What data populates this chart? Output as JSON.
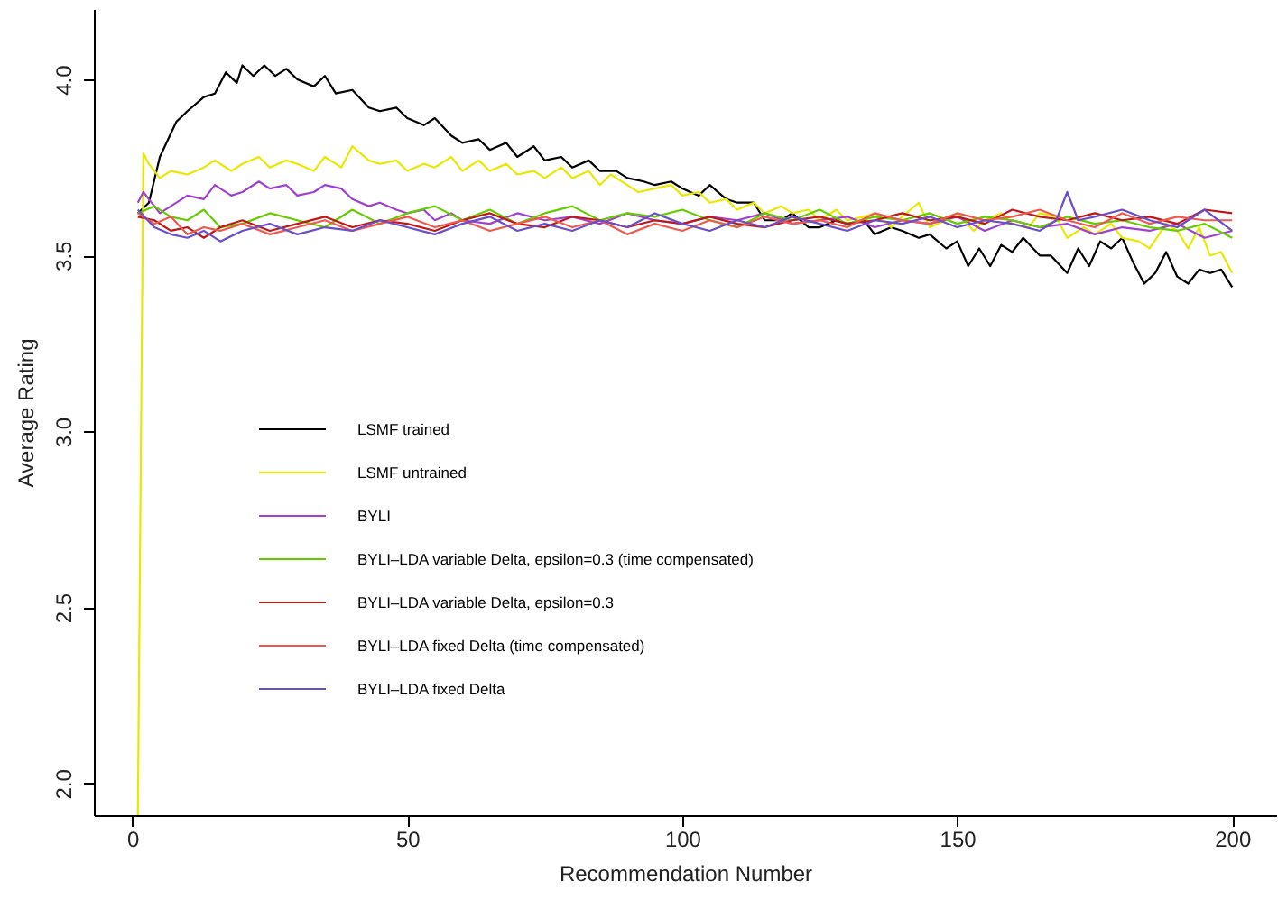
{
  "chart_data": {
    "type": "line",
    "xlabel": "Recommendation Number",
    "ylabel": "Average Rating",
    "xlim": [
      -7,
      208
    ],
    "ylim": [
      1.91,
      4.2
    ],
    "xticks": [
      0,
      50,
      100,
      150,
      200
    ],
    "yticks": [
      {
        "value": 2,
        "label": "2.0"
      },
      {
        "value": 2.5,
        "label": "2.5"
      },
      {
        "value": 3,
        "label": "3.0"
      },
      {
        "value": 3.5,
        "label": "3.5"
      },
      {
        "value": 4,
        "label": "4.0"
      }
    ],
    "grid": false,
    "legend": "left",
    "line_style": "solid",
    "series": [
      {
        "name": "LSMF trained",
        "color": "#000000",
        "x": [
          1,
          3,
          5,
          8,
          10,
          13,
          15,
          17,
          19,
          20,
          22,
          24,
          26,
          28,
          30,
          33,
          35,
          37,
          40,
          43,
          45,
          48,
          50,
          53,
          55,
          58,
          60,
          63,
          65,
          68,
          70,
          73,
          75,
          78,
          80,
          83,
          85,
          88,
          90,
          93,
          95,
          98,
          100,
          103,
          105,
          108,
          110,
          113,
          115,
          118,
          120,
          123,
          125,
          128,
          130,
          133,
          135,
          138,
          140,
          143,
          145,
          148,
          150,
          152,
          154,
          156,
          158,
          160,
          162,
          165,
          167,
          170,
          172,
          174,
          176,
          178,
          180,
          182,
          184,
          186,
          188,
          190,
          192,
          194,
          196,
          198,
          200
        ],
        "values": [
          3.62,
          3.65,
          3.78,
          3.88,
          3.91,
          3.95,
          3.96,
          4.02,
          3.99,
          4.04,
          4.01,
          4.04,
          4.01,
          4.03,
          4.0,
          3.98,
          4.01,
          3.96,
          3.97,
          3.92,
          3.91,
          3.92,
          3.89,
          3.87,
          3.89,
          3.84,
          3.82,
          3.83,
          3.8,
          3.82,
          3.78,
          3.81,
          3.77,
          3.78,
          3.75,
          3.77,
          3.74,
          3.74,
          3.72,
          3.71,
          3.7,
          3.71,
          3.69,
          3.67,
          3.7,
          3.66,
          3.65,
          3.65,
          3.6,
          3.6,
          3.62,
          3.58,
          3.58,
          3.6,
          3.59,
          3.6,
          3.56,
          3.58,
          3.57,
          3.55,
          3.56,
          3.52,
          3.54,
          3.47,
          3.52,
          3.47,
          3.53,
          3.51,
          3.55,
          3.5,
          3.5,
          3.45,
          3.52,
          3.47,
          3.54,
          3.52,
          3.55,
          3.48,
          3.42,
          3.45,
          3.51,
          3.44,
          3.42,
          3.46,
          3.45,
          3.46,
          3.41
        ]
      },
      {
        "name": "LSMF untrained",
        "color": "#e8e800",
        "x": [
          1,
          2,
          3,
          5,
          7,
          10,
          13,
          15,
          18,
          20,
          23,
          25,
          28,
          30,
          33,
          35,
          38,
          40,
          43,
          45,
          48,
          50,
          53,
          55,
          58,
          60,
          63,
          65,
          68,
          70,
          73,
          75,
          78,
          80,
          83,
          85,
          87,
          90,
          92,
          95,
          98,
          100,
          103,
          105,
          108,
          110,
          113,
          115,
          118,
          120,
          123,
          125,
          128,
          130,
          133,
          135,
          138,
          140,
          143,
          145,
          148,
          150,
          153,
          155,
          158,
          160,
          163,
          165,
          168,
          170,
          173,
          175,
          178,
          180,
          183,
          185,
          188,
          190,
          192,
          194,
          196,
          198,
          200
        ],
        "values": [
          1.91,
          3.79,
          3.76,
          3.72,
          3.74,
          3.73,
          3.75,
          3.77,
          3.74,
          3.76,
          3.78,
          3.75,
          3.77,
          3.76,
          3.74,
          3.78,
          3.75,
          3.81,
          3.77,
          3.76,
          3.77,
          3.74,
          3.76,
          3.75,
          3.78,
          3.74,
          3.77,
          3.74,
          3.76,
          3.73,
          3.74,
          3.72,
          3.75,
          3.72,
          3.74,
          3.7,
          3.73,
          3.7,
          3.68,
          3.69,
          3.7,
          3.67,
          3.68,
          3.65,
          3.66,
          3.63,
          3.65,
          3.62,
          3.64,
          3.62,
          3.63,
          3.6,
          3.63,
          3.6,
          3.61,
          3.62,
          3.58,
          3.61,
          3.65,
          3.58,
          3.6,
          3.62,
          3.57,
          3.6,
          3.62,
          3.59,
          3.58,
          3.62,
          3.61,
          3.55,
          3.58,
          3.56,
          3.59,
          3.55,
          3.54,
          3.52,
          3.59,
          3.57,
          3.52,
          3.58,
          3.5,
          3.51,
          3.45
        ]
      },
      {
        "name": "BYLI",
        "color": "#a040d0",
        "x": [
          1,
          2,
          3,
          5,
          7,
          10,
          13,
          15,
          18,
          20,
          23,
          25,
          28,
          30,
          33,
          35,
          38,
          40,
          43,
          45,
          48,
          50,
          53,
          55,
          58,
          60,
          65,
          70,
          75,
          80,
          85,
          90,
          95,
          100,
          105,
          110,
          115,
          120,
          125,
          130,
          135,
          140,
          145,
          150,
          155,
          160,
          165,
          170,
          175,
          180,
          185,
          190,
          195,
          200
        ],
        "values": [
          3.65,
          3.68,
          3.66,
          3.62,
          3.64,
          3.67,
          3.66,
          3.7,
          3.67,
          3.68,
          3.71,
          3.69,
          3.7,
          3.67,
          3.68,
          3.7,
          3.69,
          3.66,
          3.64,
          3.65,
          3.63,
          3.62,
          3.63,
          3.6,
          3.62,
          3.6,
          3.59,
          3.62,
          3.6,
          3.61,
          3.59,
          3.62,
          3.6,
          3.59,
          3.61,
          3.6,
          3.62,
          3.59,
          3.6,
          3.61,
          3.58,
          3.6,
          3.59,
          3.61,
          3.57,
          3.6,
          3.58,
          3.59,
          3.56,
          3.58,
          3.57,
          3.59,
          3.55,
          3.57
        ]
      },
      {
        "name": "BYLI–LDA variable Delta, epsilon=0.3 (time compensated)",
        "color": "#66cc00",
        "x": [
          1,
          4,
          7,
          10,
          13,
          16,
          20,
          25,
          30,
          35,
          40,
          45,
          50,
          55,
          60,
          65,
          70,
          75,
          80,
          85,
          90,
          95,
          100,
          105,
          110,
          115,
          120,
          125,
          130,
          135,
          140,
          145,
          150,
          155,
          160,
          165,
          170,
          175,
          180,
          185,
          190,
          195,
          200
        ],
        "values": [
          3.62,
          3.64,
          3.61,
          3.6,
          3.63,
          3.58,
          3.59,
          3.62,
          3.6,
          3.58,
          3.63,
          3.59,
          3.62,
          3.64,
          3.6,
          3.63,
          3.59,
          3.62,
          3.64,
          3.6,
          3.62,
          3.61,
          3.63,
          3.6,
          3.58,
          3.62,
          3.6,
          3.63,
          3.59,
          3.61,
          3.6,
          3.62,
          3.59,
          3.61,
          3.6,
          3.58,
          3.61,
          3.59,
          3.6,
          3.58,
          3.57,
          3.59,
          3.55
        ]
      },
      {
        "name": "BYLI–LDA variable Delta, epsilon=0.3",
        "color": "#c01818",
        "x": [
          1,
          4,
          7,
          10,
          13,
          16,
          20,
          25,
          30,
          35,
          40,
          45,
          50,
          55,
          60,
          65,
          70,
          75,
          80,
          85,
          90,
          95,
          100,
          105,
          110,
          115,
          120,
          125,
          130,
          135,
          140,
          145,
          150,
          155,
          160,
          165,
          170,
          175,
          180,
          185,
          190,
          195,
          200
        ],
        "values": [
          3.61,
          3.6,
          3.57,
          3.58,
          3.55,
          3.58,
          3.6,
          3.57,
          3.59,
          3.61,
          3.58,
          3.6,
          3.59,
          3.57,
          3.6,
          3.62,
          3.59,
          3.58,
          3.61,
          3.6,
          3.58,
          3.6,
          3.59,
          3.61,
          3.59,
          3.58,
          3.6,
          3.61,
          3.59,
          3.6,
          3.62,
          3.6,
          3.61,
          3.59,
          3.63,
          3.61,
          3.6,
          3.62,
          3.6,
          3.61,
          3.59,
          3.63,
          3.62
        ]
      },
      {
        "name": "BYLI–LDA fixed Delta (time compensated)",
        "color": "#ee5a50",
        "x": [
          1,
          4,
          7,
          10,
          13,
          16,
          20,
          25,
          30,
          35,
          40,
          45,
          50,
          55,
          60,
          65,
          70,
          75,
          80,
          85,
          90,
          95,
          100,
          105,
          110,
          115,
          120,
          125,
          130,
          135,
          140,
          145,
          150,
          155,
          160,
          165,
          170,
          175,
          180,
          185,
          190,
          195,
          200
        ],
        "values": [
          3.62,
          3.59,
          3.61,
          3.56,
          3.58,
          3.57,
          3.59,
          3.56,
          3.58,
          3.6,
          3.57,
          3.59,
          3.61,
          3.58,
          3.6,
          3.57,
          3.59,
          3.61,
          3.58,
          3.6,
          3.56,
          3.59,
          3.57,
          3.6,
          3.58,
          3.61,
          3.59,
          3.6,
          3.58,
          3.62,
          3.6,
          3.59,
          3.62,
          3.6,
          3.61,
          3.63,
          3.6,
          3.58,
          3.62,
          3.59,
          3.61,
          3.6,
          3.6
        ]
      },
      {
        "name": "BYLI–LDA fixed Delta",
        "color": "#6a4fc8",
        "x": [
          1,
          4,
          7,
          10,
          13,
          16,
          20,
          25,
          30,
          35,
          40,
          45,
          50,
          55,
          60,
          65,
          70,
          75,
          80,
          85,
          90,
          95,
          100,
          105,
          110,
          115,
          120,
          125,
          130,
          135,
          140,
          145,
          150,
          155,
          160,
          165,
          168,
          170,
          172,
          175,
          180,
          185,
          190,
          195,
          200
        ],
        "values": [
          3.63,
          3.58,
          3.56,
          3.55,
          3.57,
          3.54,
          3.57,
          3.59,
          3.56,
          3.58,
          3.57,
          3.6,
          3.58,
          3.56,
          3.59,
          3.61,
          3.57,
          3.59,
          3.57,
          3.6,
          3.58,
          3.62,
          3.59,
          3.57,
          3.6,
          3.58,
          3.61,
          3.59,
          3.57,
          3.6,
          3.59,
          3.61,
          3.58,
          3.6,
          3.59,
          3.57,
          3.6,
          3.68,
          3.6,
          3.61,
          3.63,
          3.6,
          3.58,
          3.63,
          3.57
        ]
      }
    ]
  }
}
